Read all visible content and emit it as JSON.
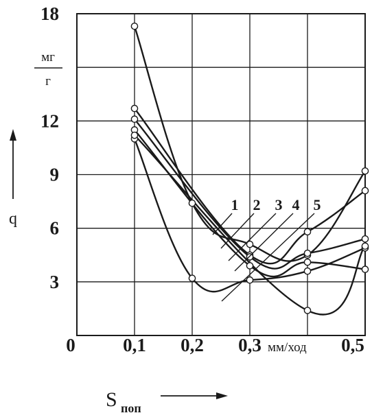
{
  "chart_data": {
    "type": "line",
    "xlabel_main": "S",
    "xlabel_sub": "поп",
    "xunit": "мм/ход",
    "ylabel": "q",
    "yunit_num": "мг",
    "yunit_den": "г",
    "xlim": [
      0,
      0.5
    ],
    "ylim": [
      0,
      18
    ],
    "grid": true,
    "x_ticks": [
      {
        "value": 0,
        "label": "0"
      },
      {
        "value": 0.1,
        "label": "0,1"
      },
      {
        "value": 0.2,
        "label": "0,2"
      },
      {
        "value": 0.3,
        "label": "0,3"
      },
      {
        "value": 0.5,
        "label": "0,5"
      }
    ],
    "y_ticks": [
      {
        "value": 3,
        "label": "3"
      },
      {
        "value": 6,
        "label": "6"
      },
      {
        "value": 9,
        "label": "9"
      },
      {
        "value": 12,
        "label": "12"
      },
      {
        "value": 18,
        "label": "18"
      }
    ],
    "series": [
      {
        "name": "1",
        "x": [
          0.1,
          0.2,
          0.3,
          0.4,
          0.5
        ],
        "y": [
          17.3,
          7.4,
          5.1,
          4.5,
          9.2
        ]
      },
      {
        "name": "2",
        "x": [
          0.1,
          0.3,
          0.4,
          0.5
        ],
        "y": [
          12.7,
          4.5,
          5.8,
          8.1
        ]
      },
      {
        "name": "3",
        "x": [
          0.1,
          0.3,
          0.4,
          0.5
        ],
        "y": [
          12.1,
          4.4,
          4.6,
          5.4
        ]
      },
      {
        "name": "4",
        "x": [
          0.1,
          0.3,
          0.4,
          0.5
        ],
        "y": [
          11.5,
          3.9,
          4.1,
          3.7
        ]
      },
      {
        "name": "5",
        "x": [
          0.1,
          0.2,
          0.3,
          0.4,
          0.5
        ],
        "y": [
          11.0,
          3.2,
          3.1,
          3.6,
          4.9
        ]
      },
      {
        "name": "",
        "x": [
          0.1,
          0.4,
          0.5
        ],
        "y": [
          11.2,
          1.4,
          5.0
        ]
      }
    ]
  }
}
